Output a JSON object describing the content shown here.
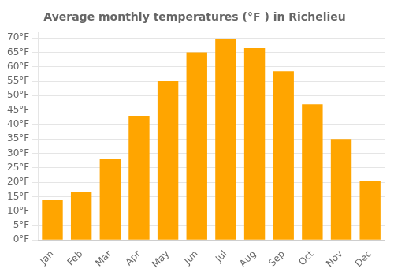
{
  "chart_data": {
    "type": "bar",
    "title": "Average monthly temperatures (°F ) in Richelieu",
    "categories": [
      "Jan",
      "Feb",
      "Mar",
      "Apr",
      "May",
      "Jun",
      "Jul",
      "Aug",
      "Sep",
      "Oct",
      "Nov",
      "Dec"
    ],
    "values": [
      14,
      16.5,
      28,
      43,
      55,
      65,
      69.5,
      66.5,
      58.5,
      47,
      35,
      20.5
    ],
    "color": "#FFA500",
    "ylim": [
      0,
      72
    ],
    "yticks": [
      {
        "value": 0,
        "label": "0°F"
      },
      {
        "value": 5,
        "label": "5°F"
      },
      {
        "value": 10,
        "label": "10°F"
      },
      {
        "value": 15,
        "label": "15°F"
      },
      {
        "value": 20,
        "label": "20°F"
      },
      {
        "value": 25,
        "label": "25°F"
      },
      {
        "value": 30,
        "label": "30°F"
      },
      {
        "value": 35,
        "label": "35°F"
      },
      {
        "value": 40,
        "label": "40°F"
      },
      {
        "value": 45,
        "label": "45°F"
      },
      {
        "value": 50,
        "label": "50°F"
      },
      {
        "value": 55,
        "label": "55°F"
      },
      {
        "value": 60,
        "label": "60°F"
      },
      {
        "value": 65,
        "label": "65°F"
      },
      {
        "value": 70,
        "label": "70°F"
      }
    ],
    "grid": true
  }
}
